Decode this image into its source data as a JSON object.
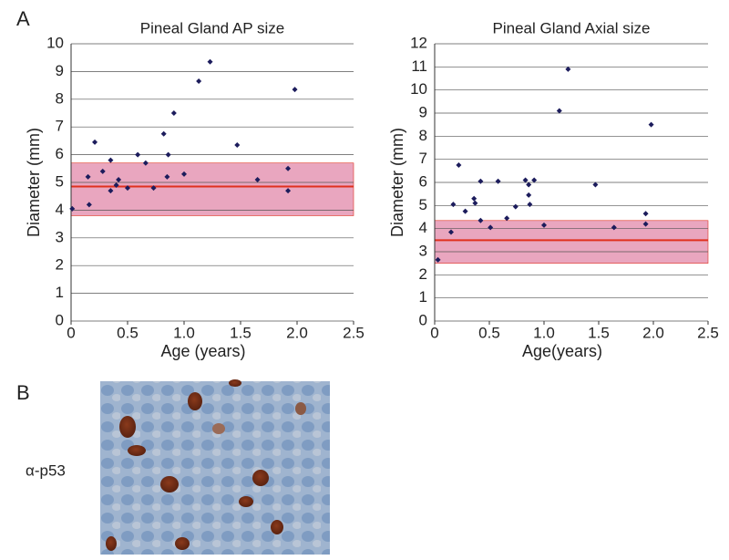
{
  "panel_labels": [
    "A",
    "B"
  ],
  "image_label": "α-p53",
  "chart_data": [
    {
      "type": "scatter",
      "title": "Pineal Gland AP size",
      "x_label": "Age (years)",
      "y_label": "Diameter (mm)",
      "color": "#1c1c5c",
      "band_color": "#e9a6bf",
      "line_color": "#e0301e",
      "reference_band": [
        3.8,
        5.7
      ],
      "reference_line": 4.85,
      "xlim": [
        0,
        2.5
      ],
      "ylim": [
        0,
        10
      ],
      "xticks": [
        0,
        0.5,
        {
          "value": 1,
          "label": "1.0"
        },
        1.5,
        {
          "value": 2,
          "label": "2.0"
        },
        2.5
      ],
      "yticks": [
        0,
        1,
        2,
        3,
        4,
        5,
        6,
        7,
        8,
        9,
        10
      ],
      "grid": true,
      "x": [
        0.01,
        0.16,
        0.15,
        0.21,
        0.28,
        0.35,
        0.35,
        0.4,
        0.42,
        0.5,
        0.59,
        0.66,
        0.73,
        0.82,
        0.86,
        0.85,
        0.91,
        1.0,
        1.13,
        1.23,
        1.47,
        1.65,
        1.92,
        1.92,
        1.98
      ],
      "values": [
        4.05,
        4.2,
        5.2,
        6.45,
        5.4,
        5.8,
        4.7,
        4.9,
        5.1,
        4.8,
        6.0,
        5.7,
        4.8,
        6.75,
        6.0,
        5.2,
        7.5,
        5.3,
        8.65,
        9.35,
        6.35,
        5.1,
        5.5,
        4.7,
        8.35
      ]
    },
    {
      "type": "scatter",
      "title": "Pineal Gland Axial size",
      "x_label": "Age(years)",
      "y_label": "Diameter (mm)",
      "color": "#1c1c5c",
      "band_color": "#e9a6bf",
      "line_color": "#e0301e",
      "reference_band": [
        2.5,
        4.35
      ],
      "reference_line": 3.5,
      "xlim": [
        0,
        2.5
      ],
      "ylim": [
        0,
        12
      ],
      "xticks": [
        0,
        0.5,
        {
          "value": 1,
          "label": "1.0"
        },
        1.5,
        {
          "value": 2,
          "label": "2.0"
        },
        2.5
      ],
      "yticks": [
        0,
        1,
        2,
        3,
        4,
        5,
        6,
        7,
        8,
        9,
        10,
        11,
        12
      ],
      "grid": true,
      "x": [
        0.03,
        0.15,
        0.17,
        0.22,
        0.28,
        0.36,
        0.37,
        0.42,
        0.42,
        0.51,
        0.58,
        0.66,
        0.74,
        0.83,
        0.86,
        0.86,
        0.87,
        0.91,
        1.0,
        1.14,
        1.22,
        1.47,
        1.64,
        1.93,
        1.93,
        1.98
      ],
      "values": [
        2.65,
        3.85,
        5.05,
        6.75,
        4.75,
        5.3,
        5.1,
        6.05,
        4.35,
        4.05,
        6.05,
        4.45,
        4.95,
        6.1,
        5.9,
        5.45,
        5.05,
        6.1,
        4.15,
        9.1,
        10.9,
        5.9,
        4.05,
        4.2,
        4.65,
        8.5
      ]
    }
  ]
}
